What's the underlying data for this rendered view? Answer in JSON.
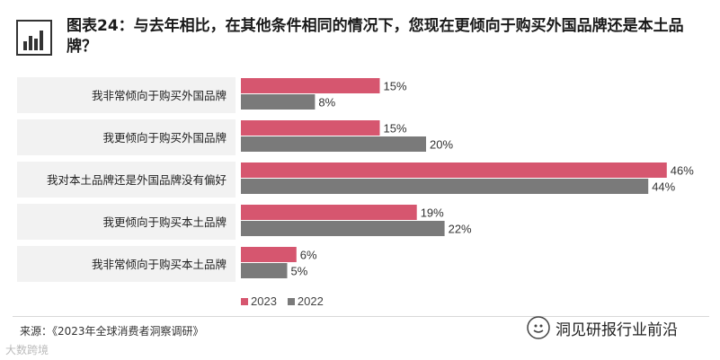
{
  "title": "图表24：与去年相比，在其他条件相同的情况下，您现在更倾向于购买外国品牌还是本土品牌？",
  "source": "来源：《2023年全球消费者洞察调研》",
  "watermark_left": "大数跨境",
  "watermark_right": "洞见研报行业前沿",
  "colors": {
    "s2023": "#d6566f",
    "s2022": "#7a7a7a",
    "label_bg": "#f2f2f2"
  },
  "chart_data": {
    "type": "bar",
    "orientation": "horizontal",
    "categories": [
      "我非常倾向于购买外国品牌",
      "我更倾向于购买外国品牌",
      "我对本土品牌还是外国品牌没有偏好",
      "我更倾向于购买本土品牌",
      "我非常倾向于购买本土品牌"
    ],
    "series": [
      {
        "name": "2023",
        "values": [
          15,
          15,
          46,
          19,
          6
        ]
      },
      {
        "name": "2022",
        "values": [
          8,
          20,
          44,
          22,
          5
        ]
      }
    ],
    "value_suffix": "%",
    "xlim": [
      0,
      50
    ],
    "grid": false,
    "legend": "bottom-left"
  }
}
